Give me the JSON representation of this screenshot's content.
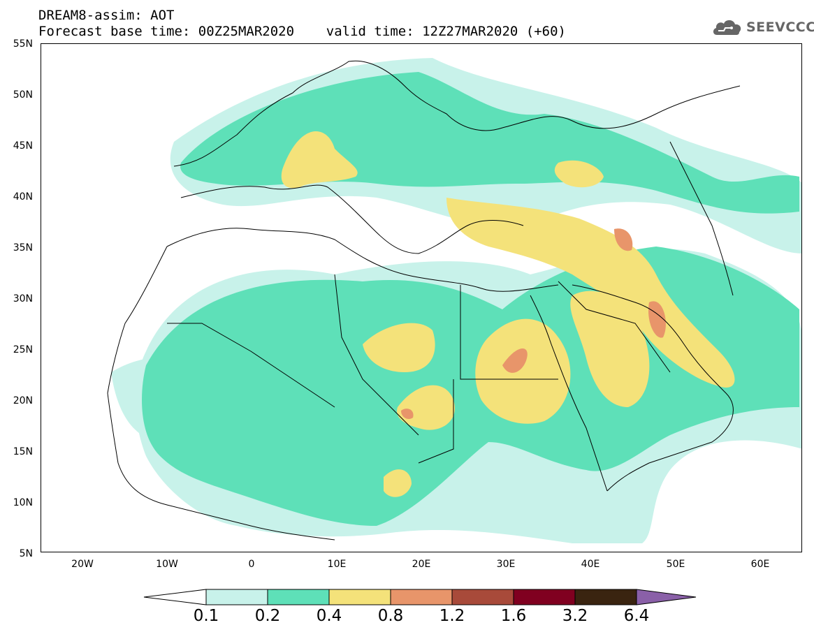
{
  "header": {
    "title_line1": "DREAM8-assim: AOT",
    "title_line2": "Forecast base time: 00Z25MAR2020    valid time: 12Z27MAR2020 (+60)"
  },
  "logo": {
    "text": "SEEVCCC",
    "icon": "cloud-icon"
  },
  "map": {
    "lat_labels": [
      "55N",
      "50N",
      "45N",
      "40N",
      "35N",
      "30N",
      "25N",
      "20N",
      "15N",
      "10N",
      "5N"
    ],
    "lon_labels": [
      "20W",
      "10W",
      "0",
      "10E",
      "20E",
      "30E",
      "40E",
      "50E",
      "60E"
    ],
    "lat_range": [
      5,
      55
    ],
    "lon_range": [
      -25,
      65
    ]
  },
  "colorbar": {
    "tick_labels": [
      "0.1",
      "0.2",
      "0.4",
      "0.8",
      "1.2",
      "1.6",
      "3.2",
      "6.4"
    ],
    "colors": {
      "below": "#ffffff",
      "c1": "#c8f2ea",
      "c2": "#5ee0b8",
      "c3": "#f4e27a",
      "c4": "#e8956a",
      "c5": "#a84a3a",
      "c6": "#800020",
      "c7": "#3a2410",
      "above": "#8a60a8"
    }
  }
}
